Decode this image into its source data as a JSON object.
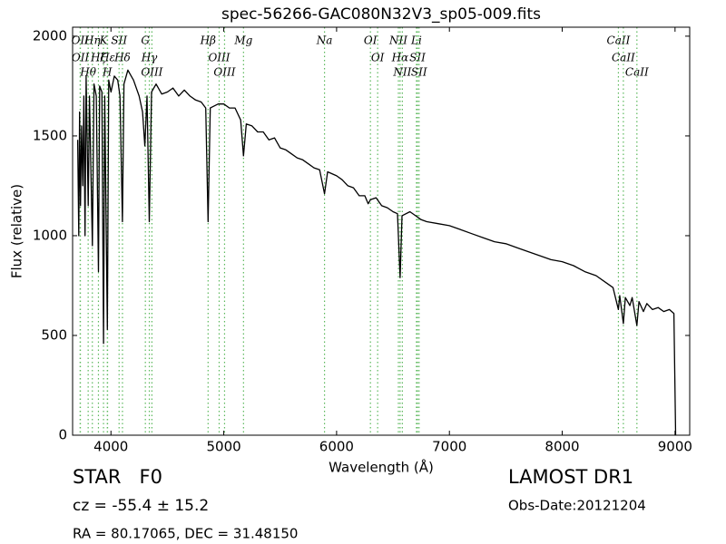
{
  "chart_data": {
    "type": "line",
    "title": "spec-56266-GAC080N32V3_sp05-009.fits",
    "x_label": "Wavelength (Å)",
    "y_label": "Flux (relative)",
    "xlim": [
      3660,
      9130
    ],
    "ylim": [
      0,
      2045
    ],
    "xticks": [
      4000,
      5000,
      6000,
      7000,
      8000,
      9000
    ],
    "yticks": [
      0,
      500,
      1000,
      1500,
      2000
    ],
    "grid": false,
    "x": [
      3705,
      3715,
      3722,
      3730,
      3740,
      3750,
      3760,
      3770,
      3780,
      3798,
      3810,
      3835,
      3850,
      3870,
      3889,
      3900,
      3920,
      3934,
      3945,
      3968,
      3980,
      4000,
      4030,
      4060,
      4080,
      4102,
      4115,
      4150,
      4180,
      4200,
      4250,
      4280,
      4300,
      4320,
      4340,
      4360,
      4400,
      4450,
      4500,
      4550,
      4600,
      4650,
      4700,
      4750,
      4800,
      4840,
      4861,
      4880,
      4950,
      5000,
      5050,
      5100,
      5150,
      5175,
      5200,
      5250,
      5300,
      5350,
      5400,
      5450,
      5500,
      5550,
      5600,
      5650,
      5700,
      5750,
      5800,
      5850,
      5893,
      5920,
      6000,
      6050,
      6100,
      6150,
      6200,
      6250,
      6280,
      6300,
      6350,
      6400,
      6450,
      6500,
      6540,
      6563,
      6580,
      6650,
      6700,
      6750,
      6800,
      6900,
      7000,
      7100,
      7200,
      7300,
      7400,
      7500,
      7600,
      7700,
      7800,
      7900,
      8000,
      8100,
      8200,
      8300,
      8400,
      8450,
      8498,
      8510,
      8542,
      8560,
      8600,
      8620,
      8662,
      8680,
      8720,
      8750,
      8800,
      8850,
      8900,
      8950,
      8990,
      9005
    ],
    "series": [
      {
        "name": "spectrum",
        "color": "#000000",
        "values": [
          1480,
          1000,
          1620,
          1150,
          1550,
          1250,
          1700,
          1000,
          1800,
          1150,
          1700,
          950,
          1760,
          1700,
          820,
          1750,
          1720,
          460,
          1700,
          530,
          1780,
          1720,
          1800,
          1780,
          1700,
          1070,
          1760,
          1830,
          1800,
          1780,
          1700,
          1620,
          1450,
          1700,
          1070,
          1720,
          1760,
          1710,
          1720,
          1740,
          1700,
          1730,
          1700,
          1680,
          1670,
          1640,
          1070,
          1640,
          1660,
          1660,
          1640,
          1640,
          1580,
          1400,
          1560,
          1550,
          1520,
          1520,
          1480,
          1490,
          1440,
          1430,
          1410,
          1390,
          1380,
          1360,
          1340,
          1330,
          1210,
          1320,
          1300,
          1280,
          1250,
          1240,
          1200,
          1200,
          1160,
          1180,
          1190,
          1150,
          1140,
          1120,
          1110,
          790,
          1100,
          1120,
          1100,
          1080,
          1070,
          1060,
          1050,
          1030,
          1010,
          990,
          970,
          960,
          940,
          920,
          900,
          880,
          870,
          850,
          820,
          800,
          760,
          740,
          630,
          700,
          560,
          690,
          650,
          690,
          550,
          670,
          620,
          660,
          630,
          640,
          620,
          630,
          610,
          0
        ]
      }
    ],
    "line_markers": [
      {
        "label": "OII",
        "x": 3727
      },
      {
        "label": "OII",
        "x": 3729
      },
      {
        "label": "Hθ",
        "x": 3798
      },
      {
        "label": "Hη",
        "x": 3835
      },
      {
        "label": "Hζ",
        "x": 3889
      },
      {
        "label": "K",
        "x": 3934
      },
      {
        "label": "H",
        "x": 3968
      },
      {
        "label": "Hε",
        "x": 3970
      },
      {
        "label": "SII",
        "x": 4072
      },
      {
        "label": "Hδ",
        "x": 4102
      },
      {
        "label": "G",
        "x": 4305
      },
      {
        "label": "Hγ",
        "x": 4340
      },
      {
        "label": "OIII",
        "x": 4363
      },
      {
        "label": "Hβ",
        "x": 4861
      },
      {
        "label": "OIII",
        "x": 4959
      },
      {
        "label": "OIII",
        "x": 5007
      },
      {
        "label": "Mg",
        "x": 5175
      },
      {
        "label": "Na",
        "x": 5893
      },
      {
        "label": "OI",
        "x": 6300
      },
      {
        "label": "OI",
        "x": 6364
      },
      {
        "label": "NII",
        "x": 6548
      },
      {
        "label": "Hα",
        "x": 6563
      },
      {
        "label": "NII",
        "x": 6583
      },
      {
        "label": "Li",
        "x": 6708
      },
      {
        "label": "SII",
        "x": 6717
      },
      {
        "label": "SII",
        "x": 6731
      },
      {
        "label": "CaII",
        "x": 8498
      },
      {
        "label": "CaII",
        "x": 8542
      },
      {
        "label": "CaII",
        "x": 8662
      }
    ],
    "marker_color": "#5cb85c",
    "object_class": "STAR   F0",
    "redshift": "cz = -55.4 ± 15.2",
    "coordinates": "RA = 80.17065, DEC = 31.48150",
    "survey": "LAMOST DR1",
    "obs_date": "Obs-Date:20121204"
  }
}
